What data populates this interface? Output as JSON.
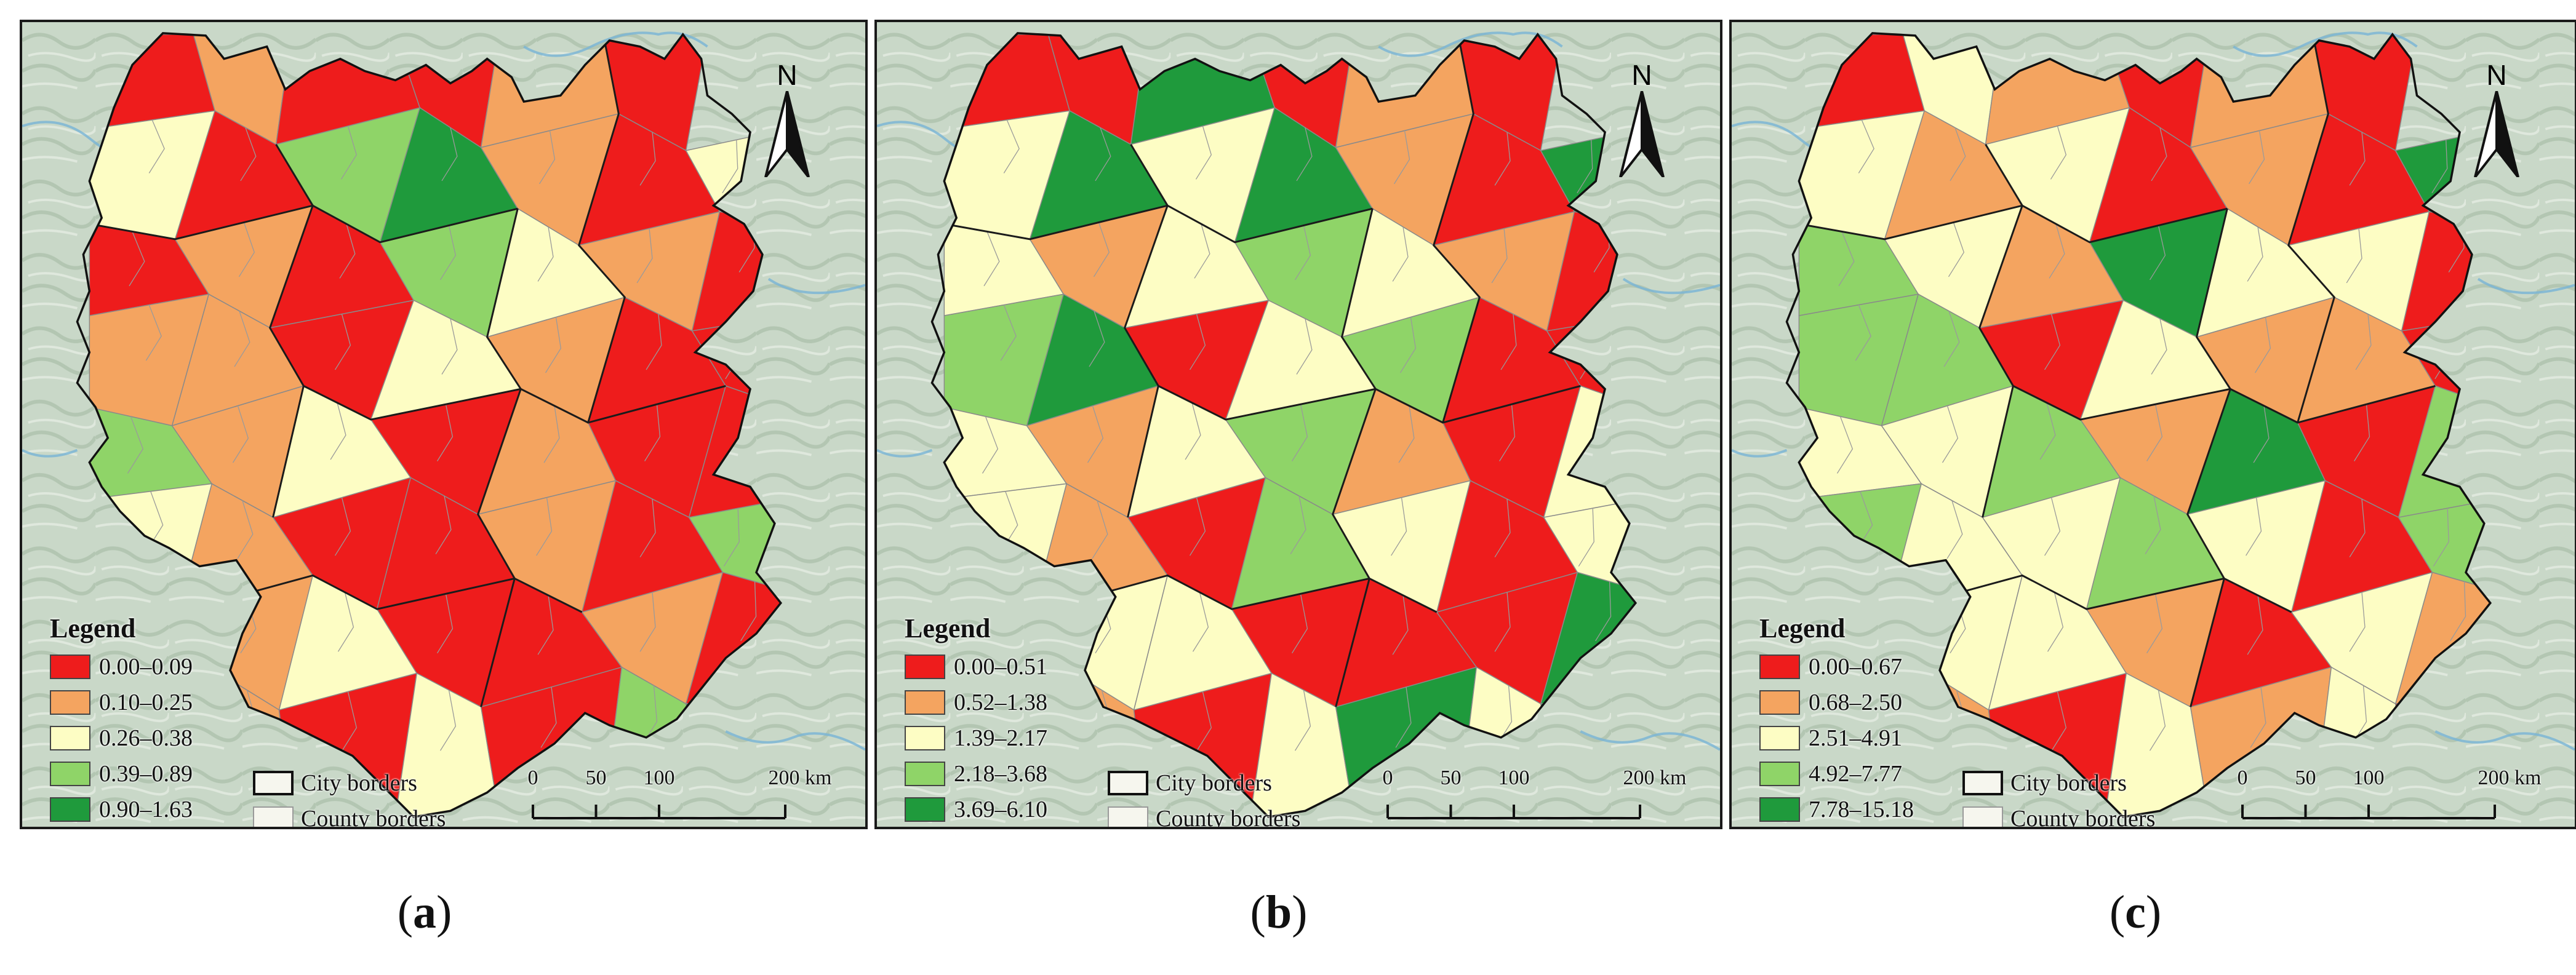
{
  "panels": [
    {
      "caption_open": "(",
      "caption_letter": "a",
      "caption_close": ")",
      "legend_title": "Legend",
      "classes": [
        {
          "label": "0.00–0.09",
          "color": "#ee1c1c"
        },
        {
          "label": "0.10–0.25",
          "color": "#f4a460"
        },
        {
          "label": "0.26–0.38",
          "color": "#fdfdc4"
        },
        {
          "label": "0.39–0.89",
          "color": "#8fd468"
        },
        {
          "label": "0.90–1.63",
          "color": "#1f9a3c"
        }
      ],
      "region_classes": [
        0,
        1,
        0,
        0,
        1,
        0,
        2,
        0,
        3,
        4,
        1,
        0,
        2,
        0,
        1,
        0,
        3,
        2,
        1,
        0,
        1,
        1,
        0,
        2,
        1,
        0,
        0,
        3,
        1,
        2,
        0,
        1,
        0,
        0,
        2,
        1,
        0,
        0,
        1,
        0,
        3,
        0,
        1,
        2,
        0
      ]
    },
    {
      "caption_open": "(",
      "caption_letter": "b",
      "caption_close": ")",
      "legend_title": "Legend",
      "classes": [
        {
          "label": "0.00–0.51",
          "color": "#ee1c1c"
        },
        {
          "label": "0.52–1.38",
          "color": "#f4a460"
        },
        {
          "label": "1.39–2.17",
          "color": "#fdfdc4"
        },
        {
          "label": "2.18–3.68",
          "color": "#8fd468"
        },
        {
          "label": "3.69–6.10",
          "color": "#1f9a3c"
        }
      ],
      "region_classes": [
        0,
        0,
        4,
        0,
        1,
        0,
        2,
        4,
        2,
        4,
        1,
        0,
        4,
        2,
        1,
        2,
        3,
        2,
        1,
        0,
        3,
        4,
        0,
        2,
        3,
        0,
        0,
        2,
        1,
        2,
        3,
        1,
        0,
        2,
        2,
        1,
        0,
        3,
        2,
        0,
        2,
        1,
        2,
        2,
        0
      ]
    },
    {
      "caption_open": "(",
      "caption_letter": "c",
      "caption_close": ")",
      "legend_title": "Legend",
      "classes": [
        {
          "label": "0.00–0.67",
          "color": "#ee1c1c"
        },
        {
          "label": "0.68–2.50",
          "color": "#f4a460"
        },
        {
          "label": "2.51–4.91",
          "color": "#fdfdc4"
        },
        {
          "label": "4.92–7.77",
          "color": "#8fd468"
        },
        {
          "label": "7.78–15.18",
          "color": "#1f9a3c"
        }
      ],
      "region_classes": [
        0,
        2,
        1,
        0,
        1,
        0,
        2,
        1,
        2,
        0,
        1,
        0,
        4,
        3,
        2,
        1,
        4,
        2,
        2,
        0,
        3,
        3,
        0,
        2,
        1,
        1,
        0,
        2,
        2,
        3,
        1,
        4,
        0,
        3,
        3,
        2,
        2,
        3,
        2,
        0,
        3,
        1,
        2,
        2,
        1
      ]
    }
  ],
  "borders": {
    "city_label": "City borders",
    "county_label": "County borders"
  },
  "scale_bar": {
    "ticks": [
      "0",
      "50",
      "100",
      "200 km"
    ],
    "tick_km": [
      0,
      50,
      100,
      200
    ]
  },
  "north_arrow": {
    "label": "N",
    "icon": "north-arrow-icon"
  }
}
